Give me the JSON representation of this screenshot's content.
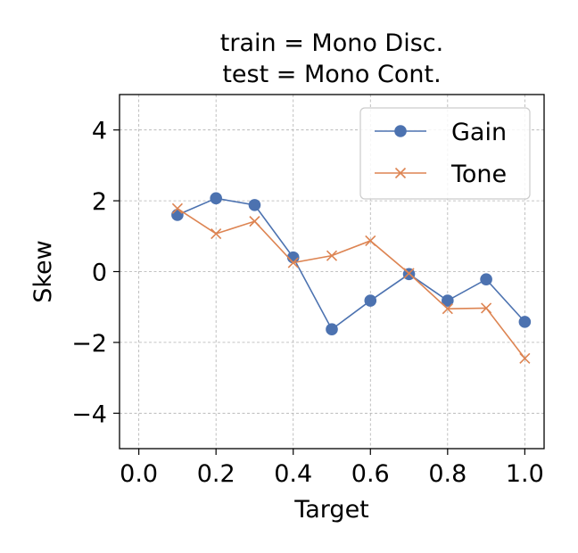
{
  "chart_data": {
    "type": "line",
    "title": [
      "train = Mono Disc.",
      "test = Mono Cont."
    ],
    "xlabel": "Target",
    "ylabel": "Skew",
    "xlim": [
      -0.05,
      1.05
    ],
    "ylim": [
      -5,
      5
    ],
    "xticks": [
      0.0,
      0.2,
      0.4,
      0.6,
      0.8,
      1.0
    ],
    "xtick_labels": [
      "0.0",
      "0.2",
      "0.4",
      "0.6",
      "0.8",
      "1.0"
    ],
    "yticks": [
      -4,
      -2,
      0,
      2,
      4
    ],
    "ytick_labels": [
      "−4",
      "−2",
      "0",
      "2",
      "4"
    ],
    "grid": true,
    "legend_position": "top-right",
    "x": [
      0.1,
      0.2,
      0.3,
      0.4,
      0.5,
      0.6,
      0.7,
      0.8,
      0.9,
      1.0
    ],
    "series": [
      {
        "name": "Gain",
        "color": "#4c72b0",
        "marker": "circle",
        "values": [
          1.6,
          2.07,
          1.88,
          0.4,
          -1.63,
          -0.82,
          -0.07,
          -0.82,
          -0.22,
          -1.42
        ]
      },
      {
        "name": "Tone",
        "color": "#dd8452",
        "marker": "x",
        "values": [
          1.78,
          1.07,
          1.42,
          0.25,
          0.45,
          0.87,
          -0.05,
          -1.05,
          -1.03,
          -2.45
        ]
      }
    ]
  }
}
